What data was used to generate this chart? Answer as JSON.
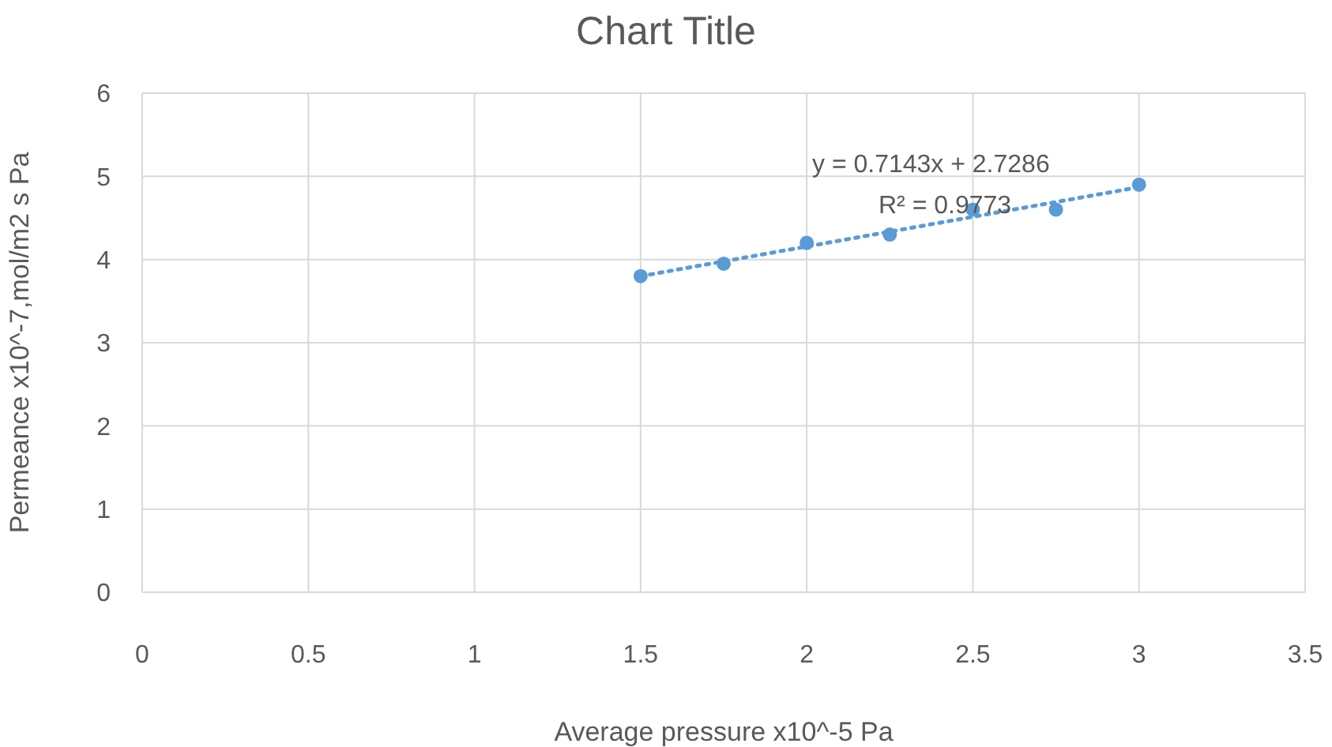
{
  "chart_data": {
    "type": "scatter",
    "title": "Chart Title",
    "xlabel": "Average pressure x10^-5 Pa",
    "ylabel": "Permeance x10^-7,mol/m2 s Pa",
    "xlim": [
      0,
      3.5
    ],
    "xticks": [
      0,
      0.5,
      1,
      1.5,
      2,
      2.5,
      3,
      3.5
    ],
    "ylim": [
      0,
      6
    ],
    "yticks": [
      0,
      1,
      2,
      3,
      4,
      5,
      6
    ],
    "grid": true,
    "series": [
      {
        "color": "#5b9bd5",
        "marker": "circle",
        "x": [
          1.5,
          1.75,
          2,
          2.25,
          2.5,
          2.75,
          3
        ],
        "values": [
          3.8,
          3.95,
          4.2,
          4.3,
          4.6,
          4.6,
          4.9
        ]
      },
      {
        "type": "line",
        "color": "#5b9bd5",
        "marker": "none",
        "line_style": "dotted",
        "x": [
          1.5,
          3
        ],
        "values": [
          3.8,
          4.87
        ]
      }
    ],
    "annotations": [
      "y = 0.7143x + 2.7286",
      "R² = 0.9773"
    ]
  }
}
